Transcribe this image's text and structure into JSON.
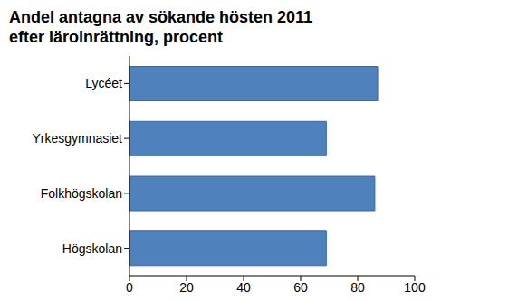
{
  "chart_data": {
    "type": "bar",
    "title": "Andel antagna av sökande hösten 2011\nefter läroinrättning, procent",
    "categories": [
      "Lycéet",
      "Yrkesgymnasiet",
      "Folkhögskolan",
      "Högskolan"
    ],
    "values": [
      87,
      69,
      86,
      69
    ],
    "color": "#4f81bd",
    "orientation": "horizontal",
    "xlim": [
      0,
      100
    ],
    "xticks": [
      0,
      20,
      40,
      60,
      80,
      100
    ],
    "grid": false
  }
}
